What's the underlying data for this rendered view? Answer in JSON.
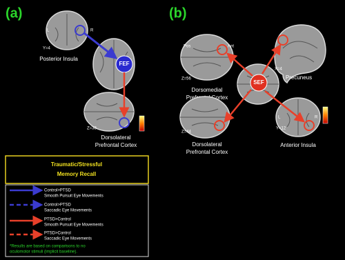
{
  "panel_a": {
    "label": "(a)",
    "posterior_insula": {
      "left": "L",
      "right": "R",
      "slice": "Y=4",
      "label": "Posterior Insula"
    },
    "fef": {
      "label": "FEF"
    },
    "dlpfc": {
      "slice": "Z=38",
      "label": [
        "Dorsolateral",
        "Prefrontal Cortex"
      ]
    }
  },
  "panel_b": {
    "label": "(b)",
    "dmpfc": {
      "posterior": "Pos",
      "anterior": "Ant",
      "slice": "Z=56",
      "label": [
        "Dorsomedial",
        "Prefrontal Cortex"
      ]
    },
    "precuneus": {
      "slice": "X=4",
      "label": "Precuneus"
    },
    "sef": {
      "label": "SEF"
    },
    "dlpfc": {
      "slice": "Z=44",
      "label": [
        "Dorsolateral",
        "Prefrontal Cortex"
      ]
    },
    "anterior_insula": {
      "left": "L",
      "right": "R",
      "slice": "Y=12",
      "label": "Anterior Insula"
    }
  },
  "legend": {
    "title": [
      "Traumatic/Stressful",
      "Memory Recall"
    ],
    "items": [
      {
        "group": "Control>PTSD",
        "movement": "Smooth Pursuit Eye Movements"
      },
      {
        "group": "Control>PTSD",
        "movement": "Saccadic Eye Movements"
      },
      {
        "group": "PTSD>Control",
        "movement": "Smooth Pursuit Eye Movements"
      },
      {
        "group": "PTSD>Control",
        "movement": "Saccadic Eye Movements"
      }
    ],
    "note": [
      "*Results are based on comparisons to no",
      "oculomotor stimuli (implicit baseline)."
    ]
  }
}
